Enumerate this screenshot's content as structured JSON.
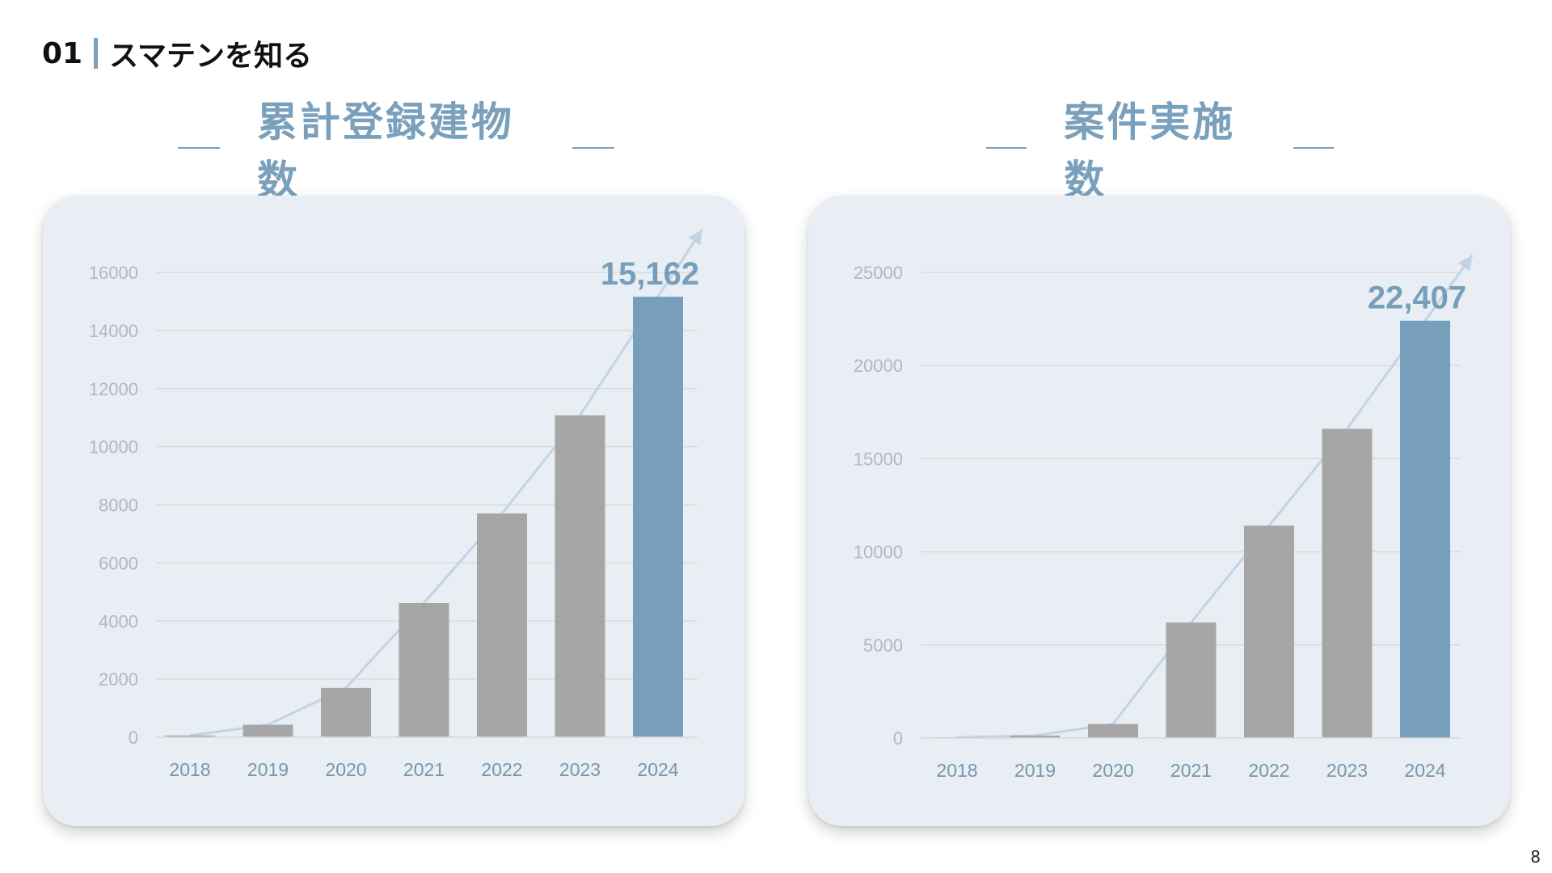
{
  "header": {
    "number": "01",
    "title": "スマテンを知る"
  },
  "page_number": "8",
  "colors": {
    "accent": "#7aa0bb",
    "highlight_bar": "#779fbb",
    "bar": "#a6a6a6",
    "card_bg": "#e8eef3",
    "axis_text": "#b2b8be",
    "category_text": "#7796ad",
    "grid": "#d6dbe0",
    "trend_arrow": "#c2d4e4"
  },
  "chart_data": [
    {
      "type": "bar",
      "title": "累計登録建物数",
      "categories": [
        "2018",
        "2019",
        "2020",
        "2021",
        "2022",
        "2023",
        "2024"
      ],
      "values": [
        60,
        430,
        1700,
        4620,
        7700,
        11080,
        15162
      ],
      "ylim": [
        0,
        16000
      ],
      "yticks": [
        0,
        2000,
        4000,
        6000,
        8000,
        10000,
        12000,
        14000,
        16000
      ],
      "highlight_label": "15,162",
      "highlight_index": 6,
      "grid": true,
      "trend_arrow": true
    },
    {
      "type": "bar",
      "title": "案件実施数",
      "categories": [
        "2018",
        "2019",
        "2020",
        "2021",
        "2022",
        "2023",
        "2024"
      ],
      "values": [
        40,
        130,
        750,
        6200,
        11400,
        16600,
        22407
      ],
      "ylim": [
        0,
        25000
      ],
      "yticks": [
        0,
        5000,
        10000,
        15000,
        20000,
        25000
      ],
      "highlight_label": "22,407",
      "highlight_index": 6,
      "grid": true,
      "trend_arrow": true
    }
  ]
}
